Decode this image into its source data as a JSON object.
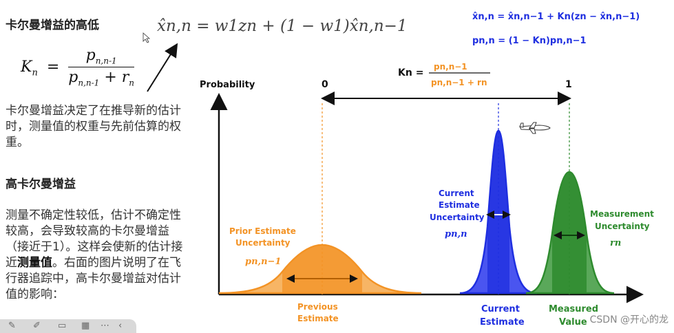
{
  "left_panel": {
    "title": "卡尔曼增益的高低",
    "gain_formula": {
      "lhs": "K",
      "lhs_sub": "n",
      "numerator": "p",
      "numerator_sub": "n,n-1",
      "denominator_p": "p",
      "denominator_p_sub": "n,n-1",
      "plus": "+",
      "denominator_r": "r",
      "denominator_r_sub": "n"
    },
    "para1": "卡尔曼增益决定了在推导新的估计时，测量值的权重与先前估算的权重。",
    "subtitle": "高卡尔曼增益",
    "para2_before": "测量不确定性较低，估计不确定性较高，会导致较高的卡尔曼增益（接近于1）。这样会使新的估计接近",
    "para2_bold": "测量值",
    "para2_after": "。右面的图片说明了在飞行器追踪中，高卡尔曼增益对估计值的影响："
  },
  "top_formula": "x̂n,n = w1zn + (1 − w1)x̂n,n−1",
  "right_formulas": {
    "state_update": "x̂n,n = x̂n,n−1 + Kn(zn − x̂n,n−1)",
    "cov_update": "pn,n = (1 − Kn)pn,n−1"
  },
  "figure": {
    "gain_label": "Kn =",
    "gain_numerator": "pn,n−1",
    "gain_denominator": "pn,n−1 + rn",
    "y_axis_label": "Probability",
    "range_start": "0",
    "range_end": "1",
    "prior_label_line1": "Prior Estimate",
    "prior_label_line2": "Uncertainty",
    "prior_symbol": "pn,n−1",
    "current_label_line1": "Current",
    "current_label_line2": "Estimate",
    "current_label_line3": "Uncertainty",
    "current_symbol": "pn,n",
    "measurement_label_line1": "Measurement",
    "measurement_label_line2": "Uncertainty",
    "measurement_symbol": "rn",
    "previous_estimate_line1": "Previous",
    "previous_estimate_line2": "Estimate",
    "current_estimate_line1": "Current",
    "current_estimate_line2": "Estimate",
    "measured_value_line1": "Measured",
    "measured_value_line2": "Value",
    "colors": {
      "prior": "#f39325",
      "current": "#1f2fe0",
      "measurement": "#2e8b2e",
      "dark": "#111111"
    }
  },
  "watermark": "CSDN @开心的龙"
}
